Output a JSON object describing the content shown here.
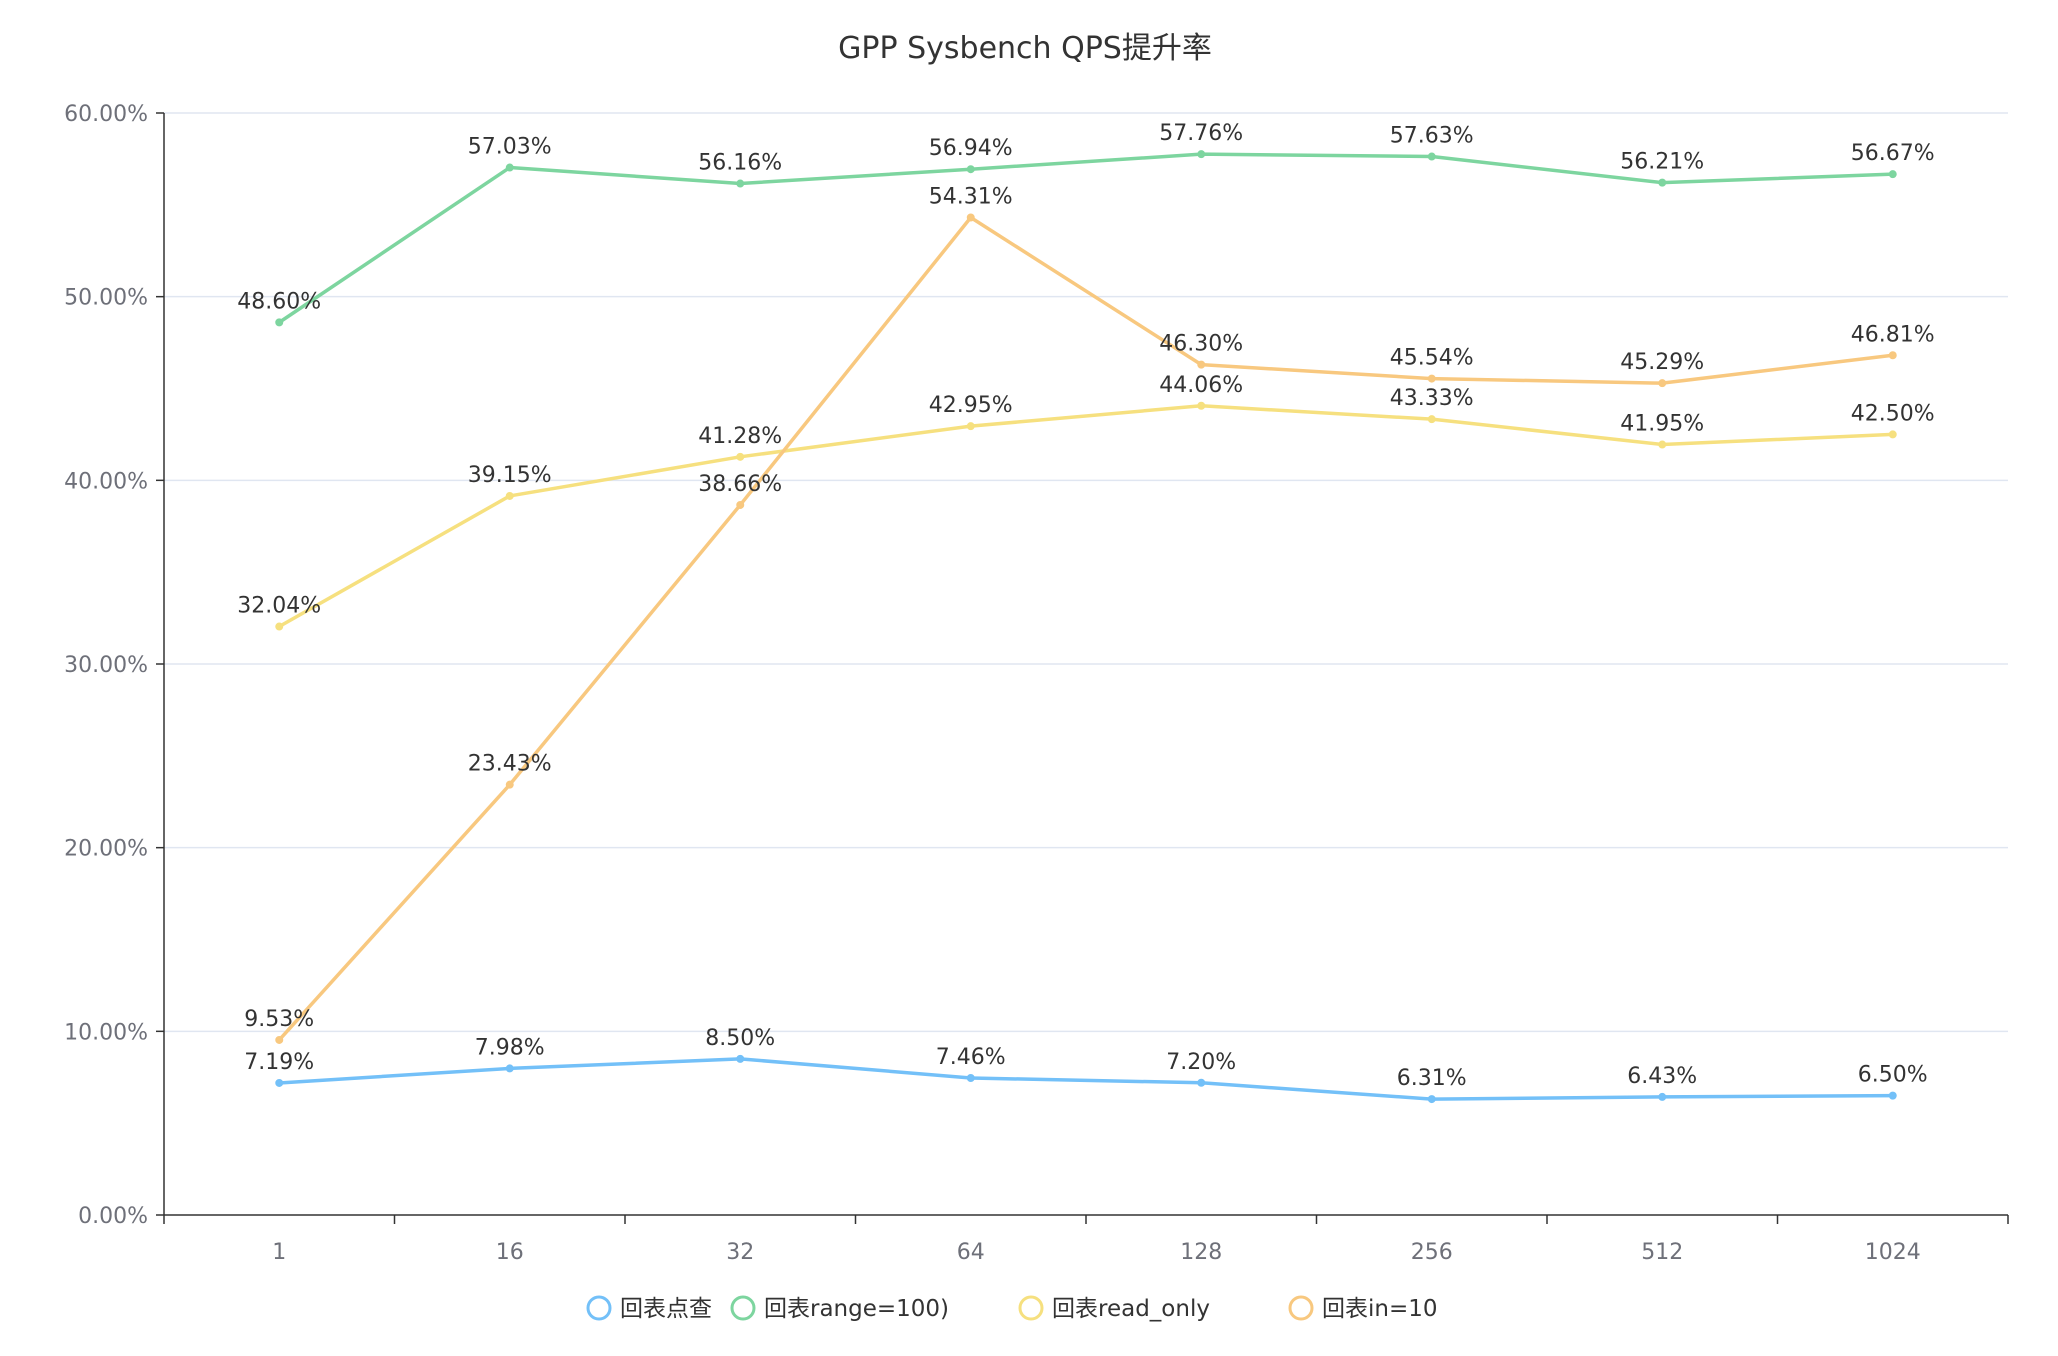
{
  "chart_data": {
    "type": "line",
    "title": "GPP Sysbench QPS提升率",
    "categories": [
      "1",
      "16",
      "32",
      "64",
      "128",
      "256",
      "512",
      "1024"
    ],
    "ylim": [
      0,
      60
    ],
    "yticks": [
      0,
      10,
      20,
      30,
      40,
      50,
      60
    ],
    "ytick_labels": [
      "0.00%",
      "10.00%",
      "20.00%",
      "30.00%",
      "40.00%",
      "50.00%",
      "60.00%"
    ],
    "grid": true,
    "legend_position": "bottom-center",
    "series": [
      {
        "name": "回表点查",
        "color": "#73c0f8",
        "values": [
          7.19,
          7.98,
          8.5,
          7.46,
          7.2,
          6.31,
          6.43,
          6.5
        ],
        "labels": [
          "7.19%",
          "7.98%",
          "8.50%",
          "7.46%",
          "7.20%",
          "6.31%",
          "6.43%",
          "6.50%"
        ]
      },
      {
        "name": "回表range=100)",
        "color": "#7dd59f",
        "values": [
          48.6,
          57.03,
          56.16,
          56.94,
          57.76,
          57.63,
          56.21,
          56.67
        ],
        "labels": [
          "48.60%",
          "57.03%",
          "56.16%",
          "56.94%",
          "57.76%",
          "57.63%",
          "56.21%",
          "56.67%"
        ]
      },
      {
        "name": "回表read_only",
        "color": "#f6e07f",
        "values": [
          32.04,
          39.15,
          41.28,
          42.95,
          44.06,
          43.33,
          41.95,
          42.5
        ],
        "labels": [
          "32.04%",
          "39.15%",
          "41.28%",
          "42.95%",
          "44.06%",
          "43.33%",
          "41.95%",
          "42.50%"
        ]
      },
      {
        "name": "回表in=10",
        "color": "#f8c87f",
        "values": [
          9.53,
          23.43,
          38.66,
          54.31,
          46.3,
          45.54,
          45.29,
          46.81
        ],
        "labels": [
          "9.53%",
          "23.43%",
          "38.66%",
          "54.31%",
          "46.30%",
          "45.54%",
          "45.29%",
          "46.81%"
        ]
      }
    ]
  }
}
